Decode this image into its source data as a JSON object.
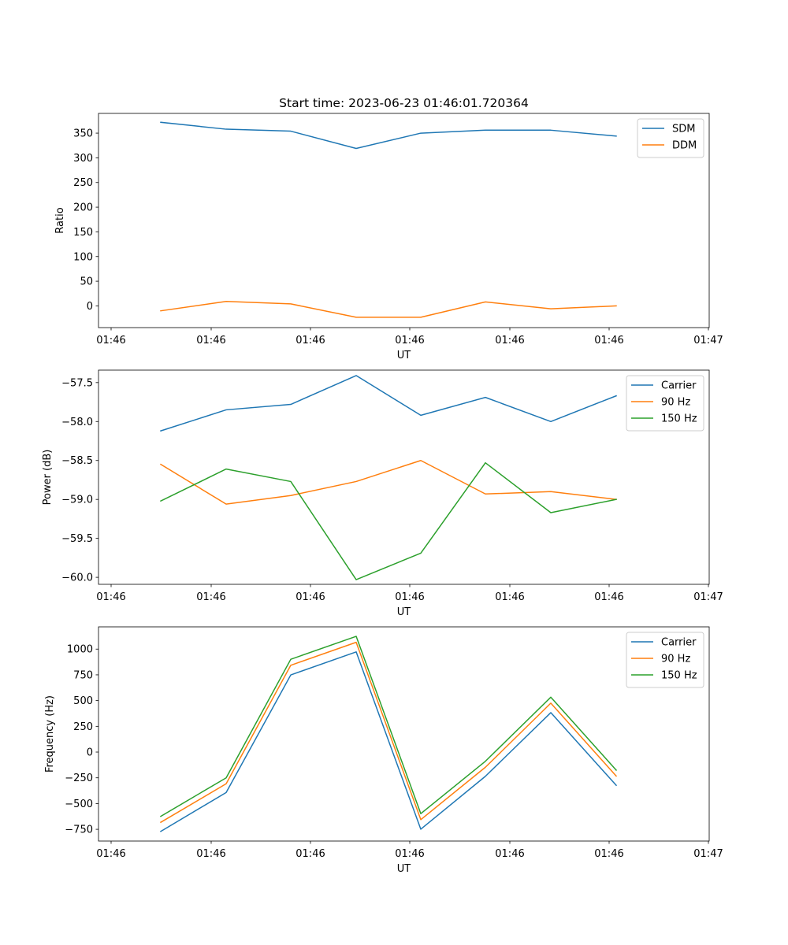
{
  "title": "Start time: 2023-06-23 01:46:01.720364",
  "chart_data": [
    {
      "type": "line",
      "xlabel": "UT",
      "ylabel": "Ratio",
      "x_tick_labels": [
        "01:46",
        "01:46",
        "01:46",
        "01:46",
        "01:46",
        "01:46",
        "01:46"
      ],
      "x_tick_last": "01:47",
      "y_ticks": [
        0,
        50,
        100,
        150,
        200,
        250,
        300,
        350
      ],
      "ylim": [
        -44,
        390
      ],
      "legend_position": "top-right",
      "series": [
        {
          "name": "SDM",
          "color": "#1f77b4",
          "values": [
            372,
            358,
            354,
            319,
            350,
            356,
            356,
            344
          ]
        },
        {
          "name": "DDM",
          "color": "#ff7f0e",
          "values": [
            -10,
            9,
            4,
            -23,
            -23,
            8,
            -6,
            0
          ]
        }
      ]
    },
    {
      "type": "line",
      "xlabel": "UT",
      "ylabel": "Power (dB)",
      "x_tick_labels": [
        "01:46",
        "01:46",
        "01:46",
        "01:46",
        "01:46",
        "01:46",
        "01:46"
      ],
      "x_tick_last": "01:47",
      "y_ticks": [
        -60.0,
        -59.5,
        -59.0,
        -58.5,
        -58.0,
        -57.5
      ],
      "y_tick_labels": [
        "−60.0",
        "−59.5",
        "−59.0",
        "−58.5",
        "−58.0",
        "−57.5"
      ],
      "ylim": [
        -60.09,
        -57.34
      ],
      "legend_position": "top-right",
      "series": [
        {
          "name": "Carrier",
          "color": "#1f77b4",
          "values": [
            -58.12,
            -57.85,
            -57.78,
            -57.41,
            -57.92,
            -57.69,
            -58.0,
            -57.67
          ]
        },
        {
          "name": "90 Hz",
          "color": "#ff7f0e",
          "values": [
            -58.55,
            -59.06,
            -58.95,
            -58.77,
            -58.5,
            -58.93,
            -58.9,
            -59.0
          ]
        },
        {
          "name": "150 Hz",
          "color": "#2ca02c",
          "values": [
            -59.02,
            -58.61,
            -58.77,
            -60.03,
            -59.69,
            -58.53,
            -59.17,
            -59.0
          ]
        }
      ]
    },
    {
      "type": "line",
      "xlabel": "UT",
      "ylabel": "Frequency (Hz)",
      "x_tick_labels": [
        "01:46",
        "01:46",
        "01:46",
        "01:46",
        "01:46",
        "01:46",
        "01:46"
      ],
      "x_tick_last": "01:47",
      "y_ticks": [
        -750,
        -500,
        -250,
        0,
        250,
        500,
        750,
        1000
      ],
      "y_tick_labels": [
        "−750",
        "−500",
        "−250",
        "0",
        "250",
        "500",
        "750",
        "1000"
      ],
      "ylim": [
        -864,
        1216
      ],
      "legend_position": "top-right",
      "series": [
        {
          "name": "Carrier",
          "color": "#1f77b4",
          "values": [
            -770,
            -393,
            749,
            973,
            -749,
            -235,
            383,
            -323
          ]
        },
        {
          "name": "90 Hz",
          "color": "#ff7f0e",
          "values": [
            -682,
            -308,
            843,
            1066,
            -656,
            -147,
            475,
            -233
          ]
        },
        {
          "name": "150 Hz",
          "color": "#2ca02c",
          "values": [
            -624,
            -250,
            901,
            1124,
            -598,
            -89,
            533,
            -175
          ]
        }
      ]
    }
  ]
}
